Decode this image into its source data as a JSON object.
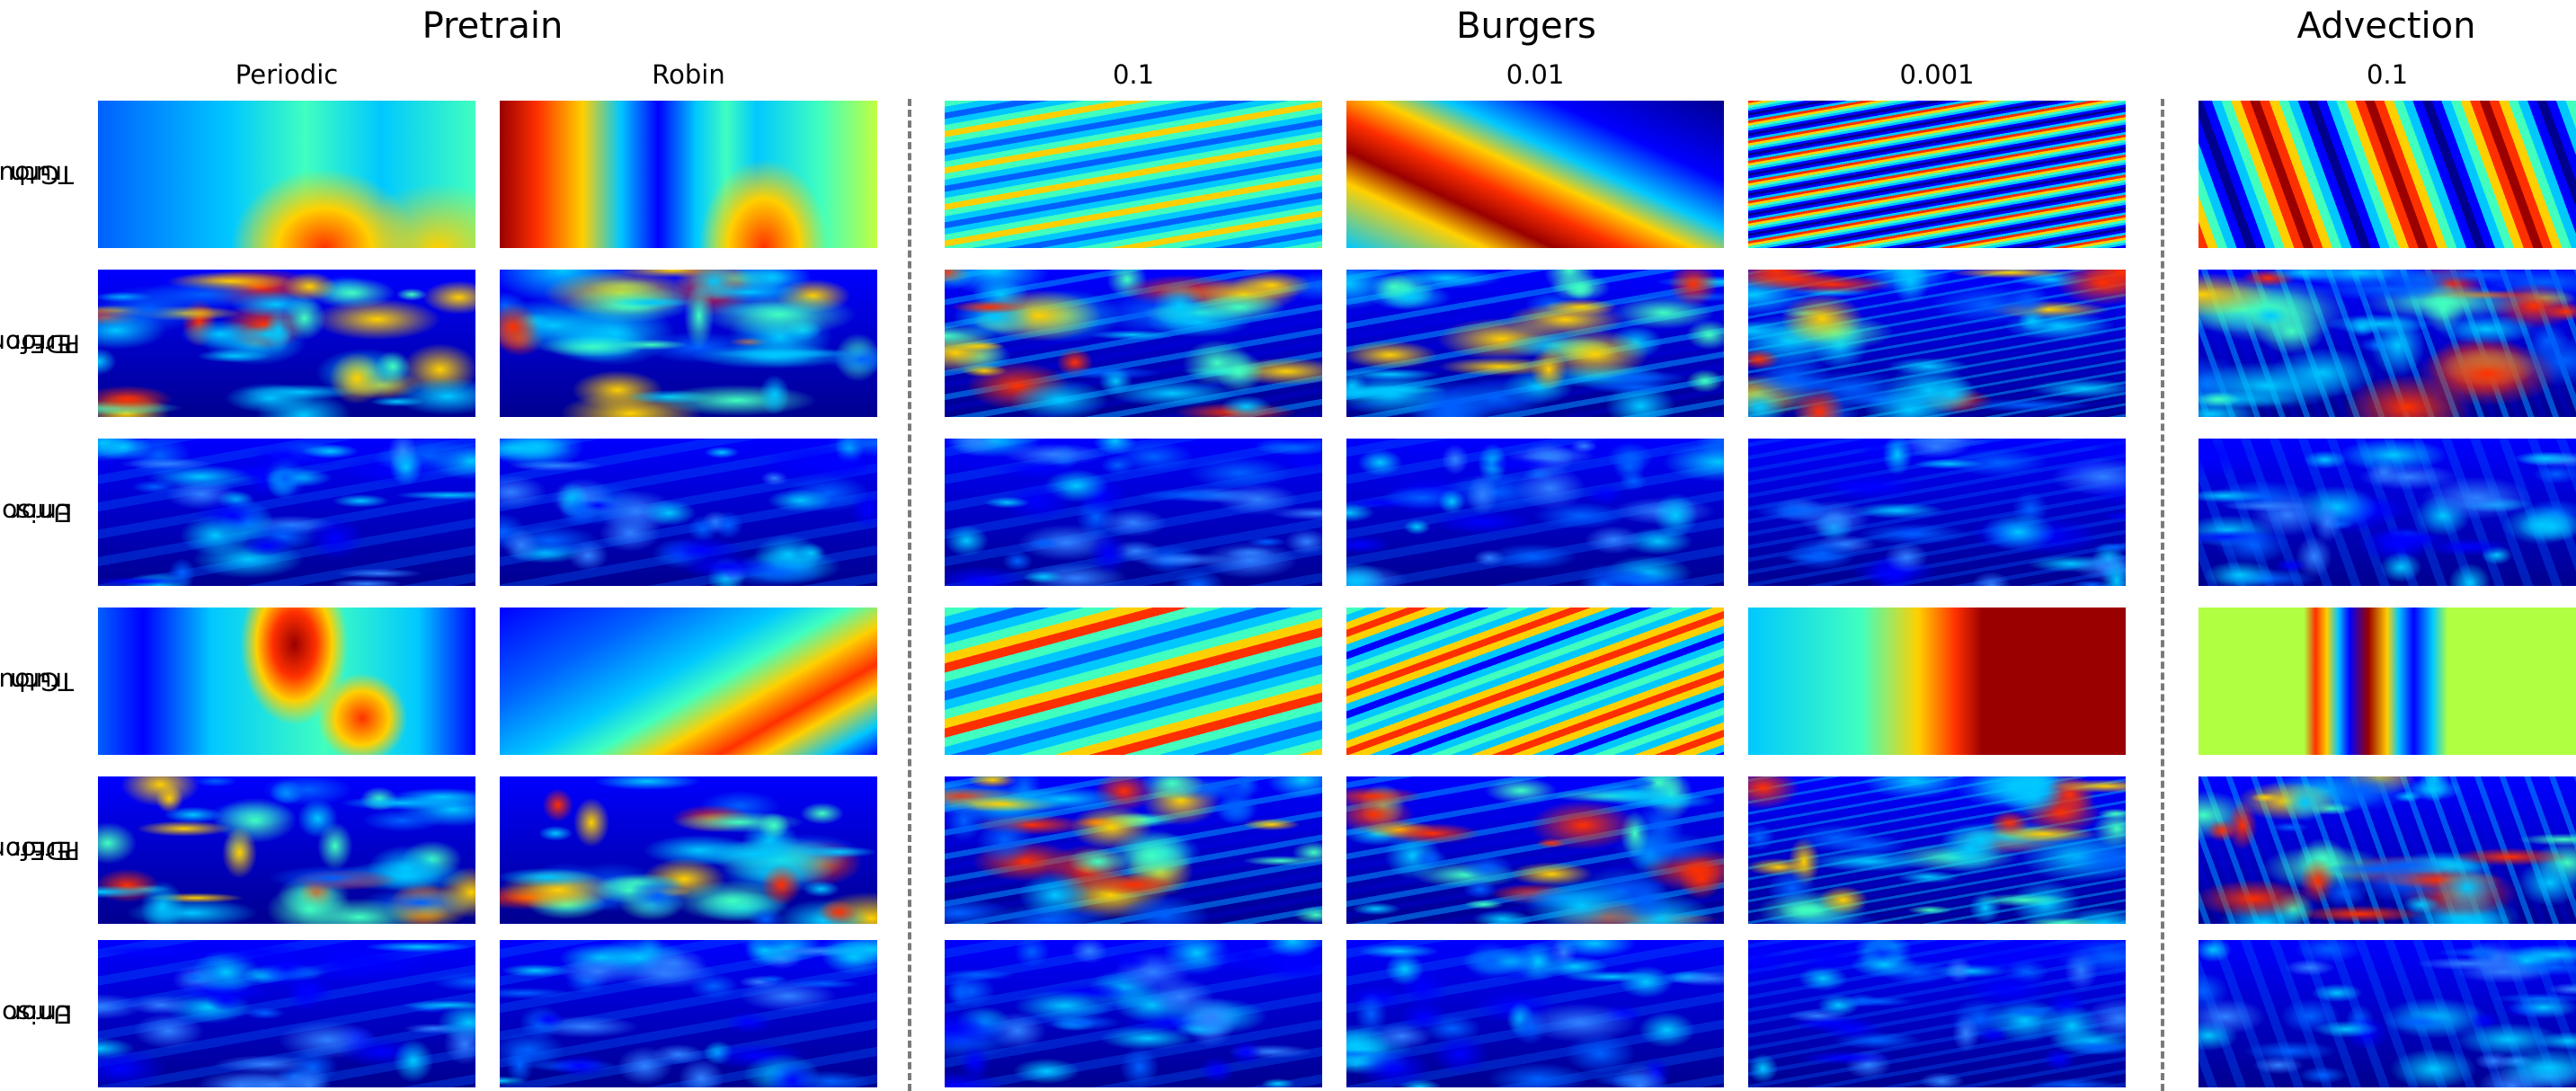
{
  "groups": [
    {
      "title": "Pretrain"
    },
    {
      "title": "Burgers"
    },
    {
      "title": "Advection"
    }
  ],
  "columns": [
    {
      "label": "Periodic"
    },
    {
      "label": "Robin"
    },
    {
      "label": "0.1"
    },
    {
      "label": "0.01"
    },
    {
      "label": "0.001"
    },
    {
      "label": "0.1"
    }
  ],
  "rows": [
    {
      "line1": "Ground",
      "line2": "Truth"
    },
    {
      "line1": "PDEformer",
      "line2": "Error"
    },
    {
      "line1": "Unisolver",
      "line2": "Error"
    },
    {
      "line1": "Ground",
      "line2": "Truth"
    },
    {
      "line1": "PDEformer",
      "line2": "Error"
    },
    {
      "line1": "Unisolver",
      "line2": "Error"
    }
  ],
  "colormap": "jet"
}
